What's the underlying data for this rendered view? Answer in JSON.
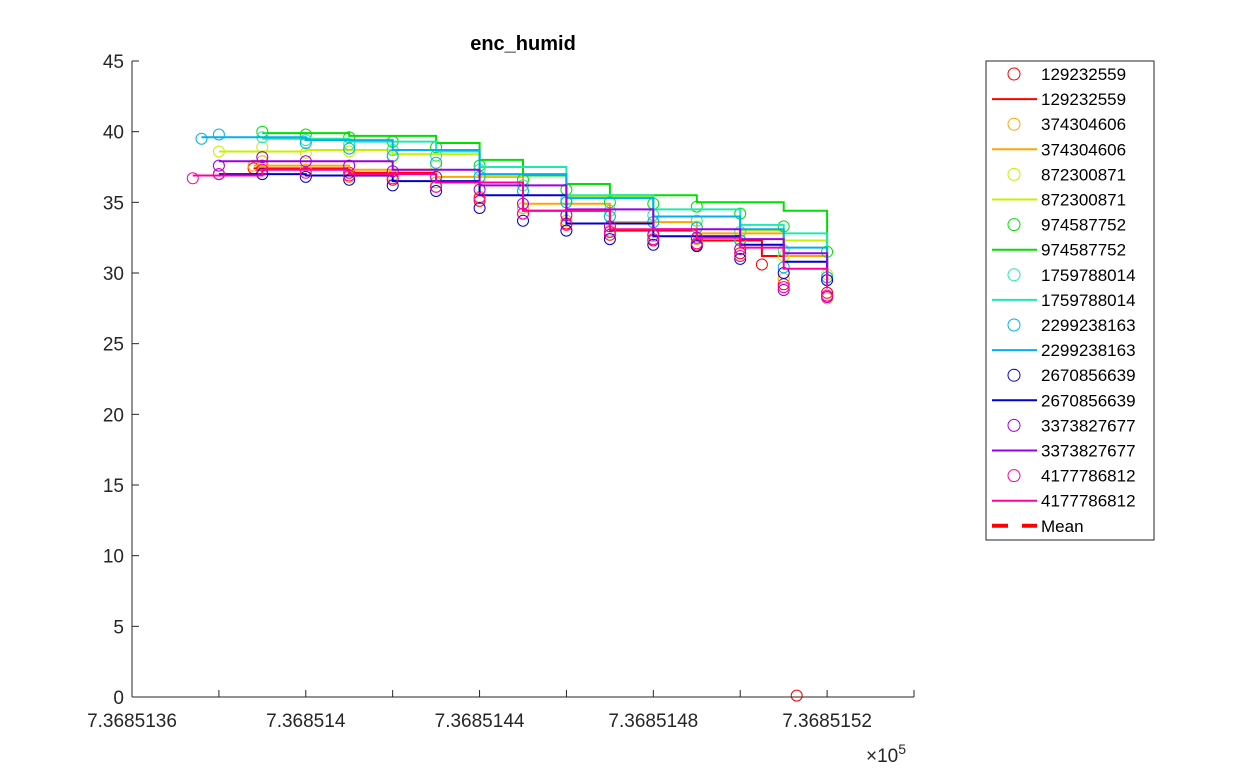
{
  "chart_data": {
    "type": "scatter",
    "title": "enc_humid",
    "xlabel": "",
    "ylabel": "",
    "x_exponent_label": "×10",
    "x_exponent_power": "5",
    "xlim": [
      7.3685136,
      7.3685154
    ],
    "ylim": [
      0,
      45
    ],
    "x_ticks": [
      7.3685136,
      7.368514,
      7.3685144,
      7.3685148,
      7.3685152
    ],
    "x_tick_labels": [
      "7.3685136",
      "7.368514",
      "7.3685144",
      "7.3685148",
      "7.3685152"
    ],
    "x_minor_ticks": [
      7.3685138,
      7.3685142,
      7.3685146,
      7.368515,
      7.3685154
    ],
    "y_ticks": [
      0,
      5,
      10,
      15,
      20,
      25,
      30,
      35,
      40,
      45
    ],
    "y_tick_labels": [
      "0",
      "5",
      "10",
      "15",
      "20",
      "25",
      "30",
      "35",
      "40",
      "45"
    ],
    "grid": false,
    "legend_position": "outside-right",
    "series": [
      {
        "name": "129232559",
        "color": "#ff0000",
        "x": [
          7.368514,
          7.3685142,
          7.3685144,
          7.3685146,
          7.3685148,
          7.368515,
          7.3685151,
          7.36851515,
          7.3685152
        ],
        "points": [
          [
            7.36851388,
            37.4
          ],
          [
            7.3685139,
            37.6
          ],
          [
            7.3685141,
            37.1
          ],
          [
            7.3685142,
            36.6
          ],
          [
            7.3685143,
            36.1
          ],
          [
            7.3685144,
            35.1
          ],
          [
            7.3685145,
            34.2
          ],
          [
            7.3685146,
            33.5
          ],
          [
            7.3685147,
            32.7
          ],
          [
            7.3685148,
            32.3
          ],
          [
            7.3685149,
            32.0
          ],
          [
            7.368515,
            31.4
          ],
          [
            7.36851505,
            30.6
          ],
          [
            7.3685151,
            29.2
          ],
          [
            7.36851513,
            0.1
          ],
          [
            7.3685152,
            28.6
          ]
        ],
        "line": [
          [
            7.36851388,
            37.4
          ],
          [
            7.3685141,
            37.1
          ],
          [
            7.3685143,
            36.4
          ],
          [
            7.3685145,
            34.4
          ],
          [
            7.3685147,
            33.0
          ],
          [
            7.3685149,
            32.3
          ],
          [
            7.36851505,
            31.2
          ],
          [
            7.3685152,
            29.6
          ]
        ]
      },
      {
        "name": "374304606",
        "color": "#ffa500",
        "points": [
          [
            7.36851388,
            37.6
          ],
          [
            7.3685139,
            37.9
          ],
          [
            7.368514,
            37.3
          ],
          [
            7.3685141,
            36.8
          ],
          [
            7.3685142,
            36.9
          ],
          [
            7.3685143,
            36.4
          ],
          [
            7.3685144,
            35.4
          ],
          [
            7.3685145,
            34.6
          ],
          [
            7.3685146,
            33.7
          ],
          [
            7.3685147,
            33.0
          ],
          [
            7.3685148,
            32.6
          ],
          [
            7.3685149,
            32.4
          ],
          [
            7.368515,
            31.7
          ],
          [
            7.3685151,
            29.6
          ],
          [
            7.3685152,
            28.2
          ]
        ],
        "line": [
          [
            7.36851388,
            37.6
          ],
          [
            7.3685141,
            37.3
          ],
          [
            7.3685143,
            36.8
          ],
          [
            7.3685145,
            34.9
          ],
          [
            7.3685147,
            33.6
          ],
          [
            7.3685149,
            32.8
          ],
          [
            7.3685151,
            31.2
          ],
          [
            7.3685152,
            29.2
          ]
        ]
      },
      {
        "name": "872300871",
        "color": "#c8f000",
        "points": [
          [
            7.3685138,
            38.6
          ],
          [
            7.3685139,
            38.9
          ],
          [
            7.368514,
            38.5
          ],
          [
            7.3685141,
            38.6
          ],
          [
            7.3685142,
            38.2
          ],
          [
            7.3685143,
            37.6
          ],
          [
            7.3685144,
            36.5
          ],
          [
            7.3685145,
            35.8
          ],
          [
            7.3685146,
            35.0
          ],
          [
            7.3685147,
            34.0
          ],
          [
            7.3685148,
            33.6
          ],
          [
            7.3685149,
            33.3
          ],
          [
            7.368515,
            32.4
          ],
          [
            7.3685151,
            31.2
          ],
          [
            7.3685152,
            29.9
          ]
        ],
        "line": [
          [
            7.3685138,
            38.6
          ],
          [
            7.368514,
            38.7
          ],
          [
            7.3685142,
            38.4
          ],
          [
            7.3685144,
            36.9
          ],
          [
            7.3685146,
            35.4
          ],
          [
            7.3685148,
            34.0
          ],
          [
            7.368515,
            33.0
          ],
          [
            7.3685151,
            32.3
          ],
          [
            7.3685152,
            30.8
          ]
        ]
      },
      {
        "name": "974587752",
        "color": "#00e000",
        "points": [
          [
            7.3685139,
            40.0
          ],
          [
            7.368514,
            39.8
          ],
          [
            7.3685141,
            39.6
          ],
          [
            7.3685142,
            39.3
          ],
          [
            7.3685143,
            38.9
          ],
          [
            7.3685144,
            37.6
          ],
          [
            7.3685145,
            36.6
          ],
          [
            7.3685146,
            35.9
          ],
          [
            7.3685147,
            35.0
          ],
          [
            7.3685148,
            34.9
          ],
          [
            7.3685149,
            34.7
          ],
          [
            7.368515,
            34.2
          ],
          [
            7.3685151,
            33.3
          ],
          [
            7.3685152,
            31.5
          ]
        ],
        "line": [
          [
            7.3685139,
            39.9
          ],
          [
            7.3685141,
            39.7
          ],
          [
            7.3685143,
            39.2
          ],
          [
            7.3685144,
            38.0
          ],
          [
            7.3685145,
            36.9
          ],
          [
            7.3685146,
            36.3
          ],
          [
            7.3685147,
            35.5
          ],
          [
            7.3685149,
            35.0
          ],
          [
            7.3685151,
            34.4
          ],
          [
            7.3685152,
            32.1
          ]
        ]
      },
      {
        "name": "1759788014",
        "color": "#20e8b0",
        "points": [
          [
            7.3685139,
            39.6
          ],
          [
            7.368514,
            39.4
          ],
          [
            7.3685141,
            39.1
          ],
          [
            7.3685142,
            38.7
          ],
          [
            7.3685143,
            38.3
          ],
          [
            7.3685144,
            37.3
          ],
          [
            7.3685145,
            36.2
          ],
          [
            7.3685146,
            35.2
          ],
          [
            7.3685147,
            34.4
          ],
          [
            7.3685148,
            34.1
          ],
          [
            7.3685149,
            33.7
          ],
          [
            7.368515,
            32.9
          ],
          [
            7.3685151,
            31.6
          ],
          [
            7.3685152,
            29.7
          ]
        ],
        "line": [
          [
            7.3685139,
            39.5
          ],
          [
            7.3685141,
            39.3
          ],
          [
            7.3685143,
            38.6
          ],
          [
            7.3685144,
            37.5
          ],
          [
            7.3685146,
            35.5
          ],
          [
            7.3685148,
            34.5
          ],
          [
            7.368515,
            33.4
          ],
          [
            7.3685151,
            32.8
          ],
          [
            7.3685152,
            30.4
          ]
        ]
      },
      {
        "name": "2299238163",
        "color": "#00b0f0",
        "points": [
          [
            7.36851376,
            39.5
          ],
          [
            7.3685138,
            39.8
          ],
          [
            7.368514,
            39.2
          ],
          [
            7.3685141,
            38.8
          ],
          [
            7.3685142,
            38.3
          ],
          [
            7.3685143,
            37.8
          ],
          [
            7.3685144,
            36.8
          ],
          [
            7.3685145,
            35.8
          ],
          [
            7.3685146,
            35.0
          ],
          [
            7.3685147,
            34.0
          ],
          [
            7.3685148,
            33.6
          ],
          [
            7.3685149,
            33.2
          ],
          [
            7.368515,
            32.3
          ],
          [
            7.3685151,
            30.4
          ],
          [
            7.3685152,
            29.7
          ]
        ],
        "line": [
          [
            7.36851376,
            39.6
          ],
          [
            7.368514,
            39.4
          ],
          [
            7.3685142,
            38.7
          ],
          [
            7.3685144,
            37.0
          ],
          [
            7.3685146,
            35.3
          ],
          [
            7.3685148,
            34.0
          ],
          [
            7.368515,
            33.1
          ],
          [
            7.3685151,
            31.8
          ],
          [
            7.3685152,
            30.2
          ]
        ]
      },
      {
        "name": "2670856639",
        "color": "#0000d0",
        "points": [
          [
            7.3685138,
            37.0
          ],
          [
            7.3685139,
            37.0
          ],
          [
            7.368514,
            36.8
          ],
          [
            7.3685141,
            36.6
          ],
          [
            7.3685142,
            36.2
          ],
          [
            7.3685143,
            35.8
          ],
          [
            7.3685144,
            34.6
          ],
          [
            7.3685145,
            33.7
          ],
          [
            7.3685146,
            33.0
          ],
          [
            7.3685147,
            32.4
          ],
          [
            7.3685148,
            32.0
          ],
          [
            7.3685149,
            31.9
          ],
          [
            7.368515,
            31.0
          ],
          [
            7.3685151,
            30.0
          ],
          [
            7.3685152,
            29.5
          ]
        ],
        "line": [
          [
            7.3685138,
            37.0
          ],
          [
            7.368514,
            36.9
          ],
          [
            7.3685142,
            36.5
          ],
          [
            7.3685144,
            35.5
          ],
          [
            7.3685146,
            33.5
          ],
          [
            7.3685148,
            32.6
          ],
          [
            7.368515,
            32.0
          ],
          [
            7.3685151,
            30.8
          ],
          [
            7.3685152,
            29.8
          ]
        ]
      },
      {
        "name": "3373827677",
        "color": "#9a00e6",
        "points": [
          [
            7.3685138,
            37.6
          ],
          [
            7.3685139,
            38.2
          ],
          [
            7.368514,
            37.9
          ],
          [
            7.3685141,
            37.6
          ],
          [
            7.3685142,
            37.2
          ],
          [
            7.3685143,
            36.8
          ],
          [
            7.3685144,
            35.9
          ],
          [
            7.3685145,
            34.9
          ],
          [
            7.3685146,
            34.1
          ],
          [
            7.3685147,
            33.3
          ],
          [
            7.3685148,
            32.7
          ],
          [
            7.3685149,
            32.5
          ],
          [
            7.368515,
            31.7
          ],
          [
            7.3685151,
            28.8
          ],
          [
            7.3685152,
            28.3
          ]
        ],
        "line": [
          [
            7.3685138,
            37.9
          ],
          [
            7.368514,
            37.9
          ],
          [
            7.3685142,
            37.3
          ],
          [
            7.3685144,
            36.2
          ],
          [
            7.3685146,
            34.5
          ],
          [
            7.3685148,
            33.1
          ],
          [
            7.368515,
            32.4
          ],
          [
            7.3685151,
            31.4
          ],
          [
            7.3685152,
            29.3
          ]
        ]
      },
      {
        "name": "4177786812",
        "color": "#ff00a0",
        "points": [
          [
            7.36851374,
            36.7
          ],
          [
            7.3685138,
            37.0
          ],
          [
            7.3685139,
            37.3
          ],
          [
            7.368514,
            37.1
          ],
          [
            7.3685141,
            36.9
          ],
          [
            7.3685142,
            36.7
          ],
          [
            7.3685143,
            36.1
          ],
          [
            7.3685144,
            35.3
          ],
          [
            7.3685145,
            34.2
          ],
          [
            7.3685146,
            33.4
          ],
          [
            7.3685147,
            32.9
          ],
          [
            7.3685148,
            32.4
          ],
          [
            7.3685149,
            32.1
          ],
          [
            7.368515,
            31.2
          ],
          [
            7.3685151,
            29.0
          ],
          [
            7.3685152,
            28.4
          ]
        ],
        "line": [
          [
            7.36851374,
            36.9
          ],
          [
            7.3685139,
            37.3
          ],
          [
            7.3685141,
            37.0
          ],
          [
            7.3685143,
            36.4
          ],
          [
            7.3685145,
            34.4
          ],
          [
            7.3685147,
            33.1
          ],
          [
            7.3685149,
            32.5
          ],
          [
            7.368515,
            31.8
          ],
          [
            7.3685151,
            30.3
          ],
          [
            7.3685152,
            28.9
          ]
        ]
      }
    ],
    "legend": [
      {
        "label": "129232559",
        "style": "marker",
        "color": "#ff0000"
      },
      {
        "label": "129232559",
        "style": "line",
        "color": "#ff0000"
      },
      {
        "label": "374304606",
        "style": "marker",
        "color": "#ffa500"
      },
      {
        "label": "374304606",
        "style": "line",
        "color": "#ffa500"
      },
      {
        "label": "872300871",
        "style": "marker",
        "color": "#c8f000"
      },
      {
        "label": "872300871",
        "style": "line",
        "color": "#c8f000"
      },
      {
        "label": "974587752",
        "style": "marker",
        "color": "#00e000"
      },
      {
        "label": "974587752",
        "style": "line",
        "color": "#00e000"
      },
      {
        "label": "1759788014",
        "style": "marker",
        "color": "#20e8b0"
      },
      {
        "label": "1759788014",
        "style": "line",
        "color": "#20e8b0"
      },
      {
        "label": "2299238163",
        "style": "marker",
        "color": "#00b0f0"
      },
      {
        "label": "2299238163",
        "style": "line",
        "color": "#00b0f0"
      },
      {
        "label": "2670856639",
        "style": "marker",
        "color": "#0000d0"
      },
      {
        "label": "2670856639",
        "style": "line",
        "color": "#0000d0"
      },
      {
        "label": "3373827677",
        "style": "marker",
        "color": "#9a00e6"
      },
      {
        "label": "3373827677",
        "style": "line",
        "color": "#9a00e6"
      },
      {
        "label": "4177786812",
        "style": "marker",
        "color": "#ff00a0"
      },
      {
        "label": "4177786812",
        "style": "line",
        "color": "#ff00a0"
      },
      {
        "label": "Mean",
        "style": "dashed",
        "color": "#ff0000"
      }
    ]
  }
}
